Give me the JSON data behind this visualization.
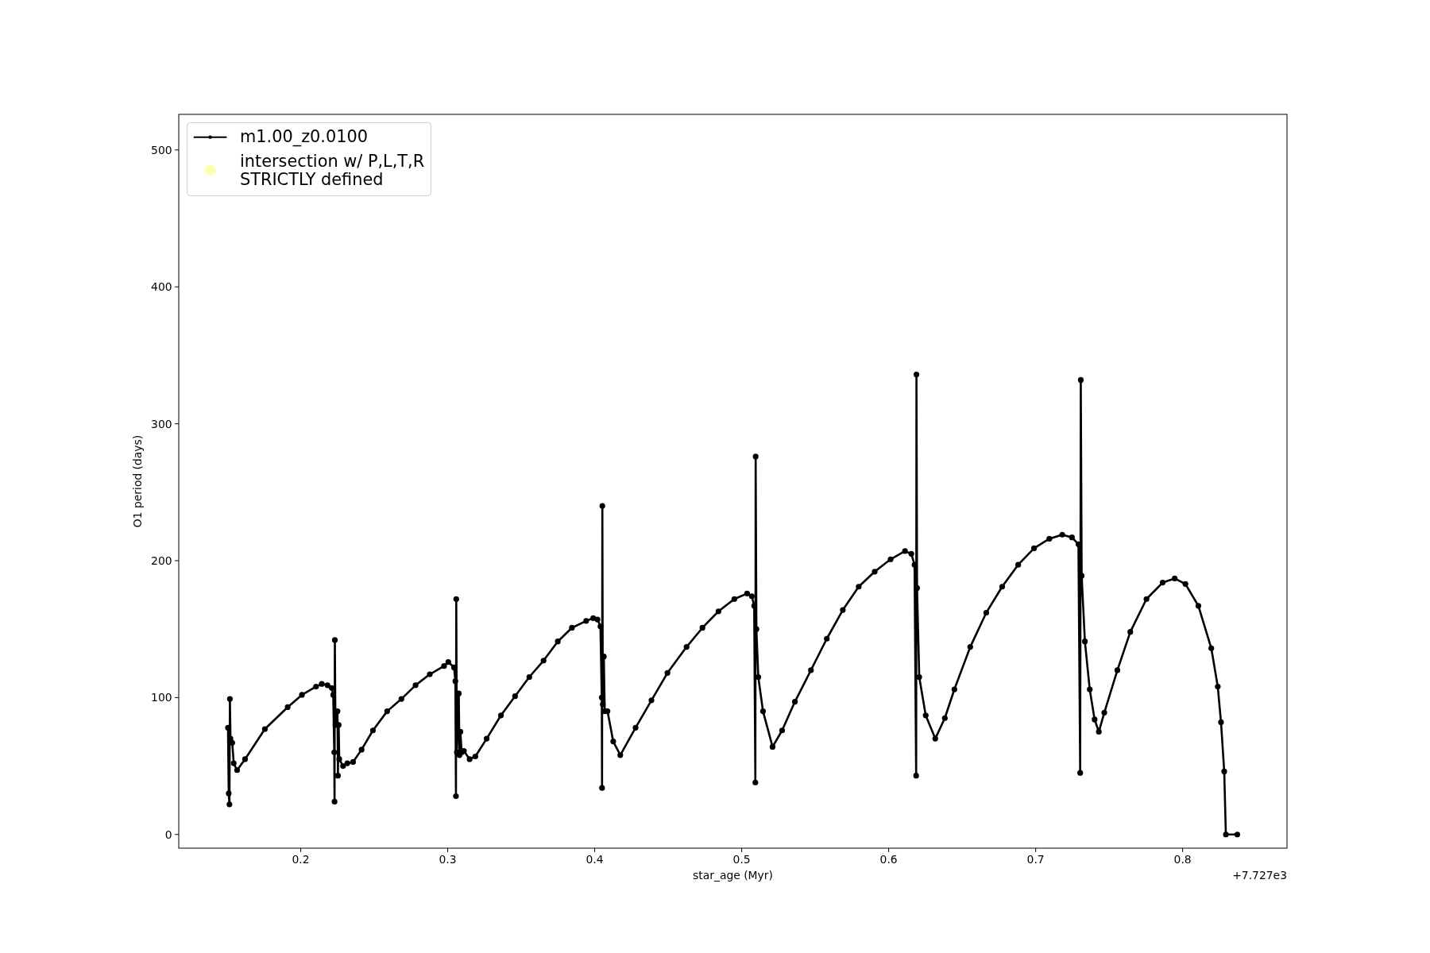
{
  "chart_data": {
    "type": "line",
    "xlabel": "star_age (Myr)",
    "ylabel": "O1 period (days)",
    "annotations": [
      "+7.727e3"
    ],
    "xlim": [
      0.117,
      0.871
    ],
    "xticks": [
      0.2,
      0.3,
      0.4,
      0.5,
      0.6,
      0.7,
      0.8
    ],
    "ylim": [
      -10,
      526
    ],
    "yticks": [
      0,
      100,
      200,
      300,
      400,
      500
    ],
    "legend": "top left",
    "marker": "circle",
    "line_style": "solid",
    "series": [
      {
        "name": "m1.00_z0.0100",
        "color": "#000000",
        "x": [
          0.1505,
          0.151,
          0.1515,
          0.1518,
          0.1522,
          0.1534,
          0.1544,
          0.1567,
          0.1621,
          0.1756,
          0.1911,
          0.2008,
          0.2104,
          0.2143,
          0.2182,
          0.2211,
          0.2221,
          0.2228,
          0.223,
          0.2232,
          0.2236,
          0.225,
          0.2253,
          0.2258,
          0.2262,
          0.2288,
          0.2317,
          0.2356,
          0.2414,
          0.2491,
          0.2588,
          0.2685,
          0.2781,
          0.2878,
          0.2975,
          0.3004,
          0.3043,
          0.3052,
          0.3056,
          0.3058,
          0.3062,
          0.3075,
          0.308,
          0.3086,
          0.3095,
          0.311,
          0.3149,
          0.3188,
          0.3265,
          0.3362,
          0.3458,
          0.3555,
          0.3652,
          0.3749,
          0.3845,
          0.3942,
          0.399,
          0.4019,
          0.4039,
          0.4048,
          0.405,
          0.4052,
          0.4055,
          0.4062,
          0.4068,
          0.4087,
          0.4126,
          0.4174,
          0.4278,
          0.4386,
          0.4495,
          0.4625,
          0.4733,
          0.4842,
          0.495,
          0.5037,
          0.5069,
          0.5085,
          0.5093,
          0.5095,
          0.51,
          0.5113,
          0.5145,
          0.521,
          0.5275,
          0.5362,
          0.5471,
          0.5579,
          0.5688,
          0.5796,
          0.5905,
          0.6013,
          0.6111,
          0.6154,
          0.6176,
          0.6187,
          0.6189,
          0.6193,
          0.6208,
          0.6252,
          0.6317,
          0.6382,
          0.6447,
          0.6555,
          0.6664,
          0.6772,
          0.6881,
          0.6989,
          0.7093,
          0.7181,
          0.7247,
          0.7291,
          0.7303,
          0.7307,
          0.7313,
          0.7335,
          0.7368,
          0.7401,
          0.743,
          0.7467,
          0.7556,
          0.7644,
          0.7754,
          0.7864,
          0.7946,
          0.8019,
          0.8107,
          0.8195,
          0.8239,
          0.8261,
          0.8283,
          0.8294,
          0.8372
        ],
        "values": [
          78,
          30,
          22,
          99,
          70,
          67,
          52,
          47,
          55,
          77,
          93,
          102,
          108,
          110,
          109,
          107,
          102,
          60,
          24,
          142,
          80,
          90,
          43,
          80,
          55,
          50,
          52,
          53,
          62,
          76,
          90,
          99,
          109,
          117,
          123,
          126,
          122,
          112,
          28,
          172,
          60,
          103,
          58,
          75,
          60,
          61,
          55,
          57,
          70,
          87,
          101,
          115,
          127,
          141,
          151,
          156,
          158,
          157,
          152,
          100,
          34,
          240,
          95,
          130,
          90,
          90,
          68,
          58,
          78,
          98,
          118,
          137,
          151,
          163,
          172,
          176,
          174,
          167,
          38,
          276,
          150,
          115,
          90,
          64,
          76,
          97,
          120,
          143,
          164,
          181,
          192,
          201,
          207,
          205,
          197,
          43,
          336,
          180,
          115,
          87,
          70,
          85,
          106,
          137,
          162,
          181,
          197,
          209,
          216,
          219,
          217,
          212,
          45,
          332,
          189,
          141,
          106,
          84,
          75,
          89,
          120,
          148,
          172,
          184,
          187,
          183,
          167,
          136,
          108,
          82,
          46,
          0,
          0
        ]
      },
      {
        "name": "intersection w/ P,L,T,R\nSTRICTLY defined",
        "type": "scatter",
        "color": "#ffffb3"
      }
    ]
  }
}
